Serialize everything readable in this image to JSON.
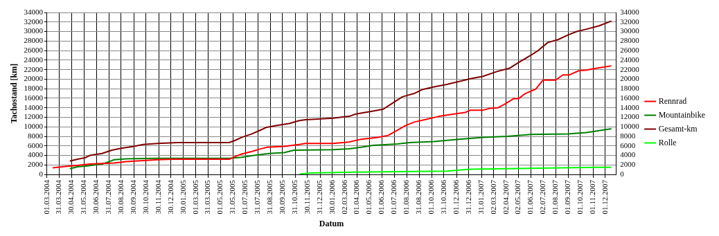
{
  "chart_data": {
    "type": "line",
    "xlabel": "Datum",
    "ylabel": "Tachostand [km]",
    "xlim": [
      "2004-03-01",
      "2007-12-27"
    ],
    "xticks": [
      {
        "value": "2004-03-01",
        "label": "01.03.2004"
      },
      {
        "value": "2004-03-31",
        "label": "31.03.2004"
      },
      {
        "value": "2004-04-30",
        "label": "30.04.2004"
      },
      {
        "value": "2004-05-31",
        "label": "31.05.2004"
      },
      {
        "value": "2004-06-30",
        "label": "30.06.2004"
      },
      {
        "value": "2004-07-31",
        "label": "31.07.2004"
      },
      {
        "value": "2004-08-30",
        "label": "30.08.2004"
      },
      {
        "value": "2004-09-30",
        "label": "30.09.2004"
      },
      {
        "value": "2004-10-30",
        "label": "30.10.2004"
      },
      {
        "value": "2004-11-30",
        "label": "30.11.2004"
      },
      {
        "value": "2004-12-30",
        "label": "30.12.2004"
      },
      {
        "value": "2005-01-30",
        "label": "30.01.2005"
      },
      {
        "value": "2005-03-01",
        "label": "01.03.2005"
      },
      {
        "value": "2005-03-31",
        "label": "31.03.2005"
      },
      {
        "value": "2005-05-01",
        "label": "01.05.2005"
      },
      {
        "value": "2005-05-31",
        "label": "31.05.2005"
      },
      {
        "value": "2005-07-01",
        "label": "01.07.2005"
      },
      {
        "value": "2005-07-31",
        "label": "31.07.2005"
      },
      {
        "value": "2005-08-31",
        "label": "31.08.2005"
      },
      {
        "value": "2005-09-30",
        "label": "30.09.2005"
      },
      {
        "value": "2005-10-31",
        "label": "31.10.2005"
      },
      {
        "value": "2005-11-30",
        "label": "30.11.2005"
      },
      {
        "value": "2005-12-31",
        "label": "31.12.2005"
      },
      {
        "value": "2006-01-30",
        "label": "30.01.2006"
      },
      {
        "value": "2006-03-02",
        "label": "02.03.2006"
      },
      {
        "value": "2006-04-01",
        "label": "01.04.2006"
      },
      {
        "value": "2006-05-01",
        "label": "01.05.2006"
      },
      {
        "value": "2006-06-01",
        "label": "01.06.2006"
      },
      {
        "value": "2006-07-01",
        "label": "01.07.2006"
      },
      {
        "value": "2006-08-01",
        "label": "01.08.2006"
      },
      {
        "value": "2006-08-31",
        "label": "31.08.2006"
      },
      {
        "value": "2006-10-01",
        "label": "01.10.2006"
      },
      {
        "value": "2006-10-31",
        "label": "31.10.2006"
      },
      {
        "value": "2006-12-01",
        "label": "01.12.2006"
      },
      {
        "value": "2006-12-31",
        "label": "31.12.2006"
      },
      {
        "value": "2007-01-31",
        "label": "31.01.2007"
      },
      {
        "value": "2007-03-02",
        "label": "02.03.2007"
      },
      {
        "value": "2007-04-02",
        "label": "02.04.2007"
      },
      {
        "value": "2007-05-02",
        "label": "02.05.2007"
      },
      {
        "value": "2007-06-01",
        "label": "01.06.2007"
      },
      {
        "value": "2007-07-02",
        "label": "02.07.2007"
      },
      {
        "value": "2007-08-01",
        "label": "01.08.2007"
      },
      {
        "value": "2007-09-01",
        "label": "01.09.2007"
      },
      {
        "value": "2007-10-01",
        "label": "01.10.2007"
      },
      {
        "value": "2007-11-01",
        "label": "01.11.2007"
      },
      {
        "value": "2007-12-01",
        "label": "01.12.2007"
      }
    ],
    "ylim": [
      0,
      34000
    ],
    "yticks": [
      0,
      2000,
      4000,
      6000,
      8000,
      10000,
      12000,
      14000,
      16000,
      18000,
      20000,
      22000,
      24000,
      26000,
      28000,
      30000,
      32000,
      34000
    ],
    "y2lim": [
      0,
      34000
    ],
    "y2ticks": [
      0,
      2000,
      4000,
      6000,
      8000,
      10000,
      12000,
      14000,
      16000,
      18000,
      20000,
      22000,
      24000,
      26000,
      28000,
      30000,
      32000,
      34000
    ],
    "grid": true,
    "legend": "right",
    "marker": "none",
    "line_style": "solid",
    "series": [
      {
        "name": "Rennrad",
        "color": "#ff0000",
        "x": [
          "2004-03-15",
          "2004-04-15",
          "2004-05-15",
          "2004-06-14",
          "2004-07-14",
          "2004-08-13",
          "2004-09-12",
          "2004-10-17",
          "2004-11-28",
          "2005-01-04",
          "2005-05-22",
          "2005-06-07",
          "2005-06-22",
          "2005-07-16",
          "2005-08-04",
          "2005-08-22",
          "2005-10-04",
          "2005-11-10",
          "2005-11-25",
          "2006-02-01",
          "2006-03-12",
          "2006-04-11",
          "2006-05-22",
          "2006-06-16",
          "2006-07-09",
          "2006-07-27",
          "2006-08-19",
          "2006-09-19",
          "2006-10-19",
          "2006-11-19",
          "2006-12-22",
          "2007-01-04",
          "2007-02-04",
          "2007-02-22",
          "2007-03-13",
          "2007-03-28",
          "2007-04-20",
          "2007-05-02",
          "2007-05-19",
          "2007-06-13",
          "2007-07-01",
          "2007-08-01",
          "2007-08-19",
          "2007-09-04",
          "2007-09-28",
          "2007-10-16",
          "2007-11-10",
          "2007-12-16"
        ],
        "values": [
          1400,
          1700,
          1900,
          2200,
          2300,
          2400,
          2700,
          2900,
          3100,
          3200,
          3200,
          3800,
          4300,
          4800,
          5300,
          5700,
          5900,
          6300,
          6500,
          6500,
          6800,
          7400,
          7800,
          8200,
          9300,
          10200,
          11000,
          11600,
          12200,
          12600,
          13000,
          13500,
          13500,
          13900,
          14000,
          14700,
          15900,
          15900,
          17000,
          17900,
          19800,
          19800,
          20900,
          20900,
          21800,
          21900,
          22300,
          22800
        ]
      },
      {
        "name": "Mountainbike",
        "color": "#008000",
        "x": [
          "2004-04-26",
          "2004-05-15",
          "2004-06-08",
          "2004-07-14",
          "2004-07-25",
          "2004-08-13",
          "2004-09-12",
          "2004-11-22",
          "2005-05-22",
          "2005-06-22",
          "2005-07-22",
          "2005-08-28",
          "2005-10-04",
          "2005-10-28",
          "2006-02-01",
          "2006-03-12",
          "2006-04-11",
          "2006-05-10",
          "2006-07-09",
          "2006-08-08",
          "2006-10-07",
          "2006-12-07",
          "2007-02-04",
          "2007-04-04",
          "2007-06-01",
          "2007-09-01",
          "2007-10-16",
          "2007-12-16"
        ],
        "values": [
          1200,
          1600,
          1800,
          2200,
          2500,
          3100,
          3300,
          3400,
          3400,
          3600,
          4000,
          4400,
          4600,
          5100,
          5200,
          5400,
          5700,
          6100,
          6400,
          6700,
          6900,
          7400,
          7800,
          8000,
          8400,
          8500,
          8800,
          9600
        ]
      },
      {
        "name": "Gesamt-km",
        "color": "#800000",
        "x": [
          "2004-04-26",
          "2004-05-15",
          "2004-06-02",
          "2004-06-14",
          "2004-07-14",
          "2004-08-07",
          "2004-08-30",
          "2004-09-30",
          "2004-10-23",
          "2004-11-28",
          "2005-01-16",
          "2005-05-22",
          "2005-06-07",
          "2005-06-22",
          "2005-07-16",
          "2005-08-04",
          "2005-08-22",
          "2005-09-16",
          "2005-10-16",
          "2005-11-10",
          "2005-11-25",
          "2006-02-01",
          "2006-03-12",
          "2006-03-29",
          "2006-05-10",
          "2006-06-04",
          "2006-06-22",
          "2006-07-21",
          "2006-08-19",
          "2006-09-07",
          "2006-10-07",
          "2006-11-07",
          "2006-12-07",
          "2007-01-04",
          "2007-02-04",
          "2007-03-10",
          "2007-04-10",
          "2007-05-02",
          "2007-06-01",
          "2007-06-19",
          "2007-07-13",
          "2007-08-07",
          "2007-09-01",
          "2007-09-22",
          "2007-10-16",
          "2007-11-16",
          "2007-12-16"
        ],
        "values": [
          2800,
          3200,
          3500,
          4000,
          4400,
          5100,
          5500,
          5900,
          6300,
          6500,
          6700,
          6700,
          7200,
          7800,
          8500,
          9200,
          9900,
          10300,
          10700,
          11300,
          11500,
          11800,
          12200,
          12700,
          13300,
          13700,
          14700,
          16300,
          17000,
          17800,
          18400,
          18900,
          19500,
          20100,
          20600,
          21600,
          22300,
          23500,
          25000,
          26000,
          27700,
          28300,
          29300,
          30000,
          30500,
          31200,
          32200
        ]
      },
      {
        "name": "Rolle",
        "color": "#00ff00",
        "x": [
          "2005-11-11",
          "2005-12-07",
          "2006-03-22",
          "2006-11-07",
          "2007-01-04",
          "2007-11-10",
          "2007-12-16"
        ],
        "values": [
          100,
          300,
          500,
          700,
          1100,
          1500,
          1500
        ]
      }
    ]
  }
}
